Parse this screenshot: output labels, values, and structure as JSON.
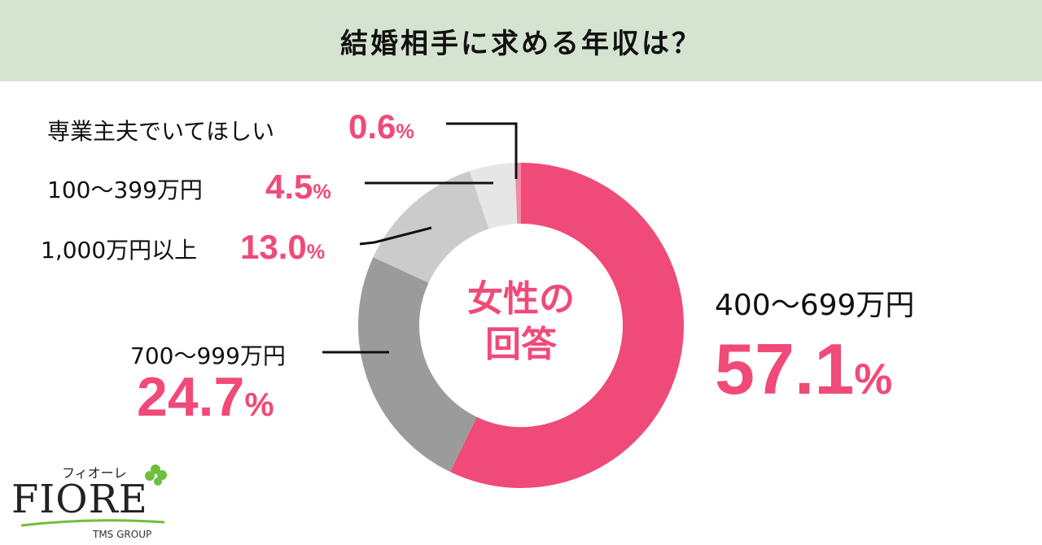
{
  "header": {
    "title": "結婚相手に求める年収は？",
    "background": "#d5e3d1"
  },
  "center_label": {
    "line1": "女性の",
    "line2": "回答"
  },
  "labels": [
    {
      "name": "専業主夫でいてほしい",
      "pct": "0.6",
      "sign": "%"
    },
    {
      "name": "100〜399万円",
      "pct": "4.5",
      "sign": "%"
    },
    {
      "name": "1,000万円以上",
      "pct": "13.0",
      "sign": "%"
    },
    {
      "name": "700〜999万円",
      "pct": "24.7",
      "sign": "%"
    },
    {
      "name": "400〜699万円",
      "pct": "57.1",
      "sign": "%"
    }
  ],
  "logo": {
    "kana": "フィオーレ",
    "word": "FIORE",
    "group": "TMS GROUP"
  },
  "chart_data": {
    "type": "pie",
    "subtype": "donut",
    "title": "結婚相手に求める年収は？",
    "center_text": "女性の回答",
    "categories": [
      "400〜699万円",
      "700〜999万円",
      "1,000万円以上",
      "100〜399万円",
      "専業主夫でいてほしい"
    ],
    "values": [
      57.1,
      24.7,
      13.0,
      4.5,
      0.6
    ],
    "unit": "%",
    "colors": [
      "#f04a78",
      "#9b9b9b",
      "#cbcbcb",
      "#e6e6e6",
      "#f48aa6"
    ],
    "start_angle": "12 o'clock",
    "direction": "clockwise",
    "legend": "none (callout labels)"
  }
}
